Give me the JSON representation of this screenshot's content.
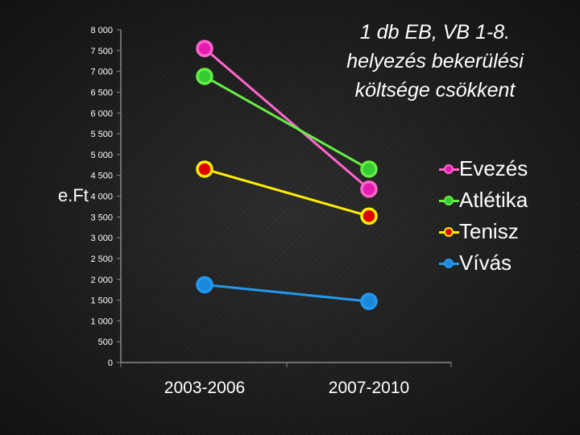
{
  "chart_data": {
    "type": "line",
    "title": "1 db EB, VB 1-8. helyezés bekerülési költsége csökkent",
    "title_lines": [
      "1 db EB, VB 1-8.",
      "helyezés bekerülési",
      "költsége csökkent"
    ],
    "ylabel": "e.Ft",
    "xlabel": "",
    "categories": [
      "2003-2006",
      "2007-2010"
    ],
    "ylim": [
      0,
      8000
    ],
    "yticks": [
      0,
      500,
      1000,
      1500,
      2000,
      2500,
      3000,
      3500,
      4000,
      4500,
      5000,
      5500,
      6000,
      6500,
      7000,
      7500,
      8000
    ],
    "ytick_labels": [
      "0",
      "500",
      "1 000",
      "1 500",
      "2 000",
      "2 500",
      "3 000",
      "3 500",
      "4 000",
      "4 500",
      "5 000",
      "5 500",
      "6 000",
      "6 500",
      "7 000",
      "7 500",
      "8 000"
    ],
    "legend_position": "right",
    "series": [
      {
        "name": "Evezés",
        "values": [
          7550,
          4170
        ],
        "color": "#ff66cc",
        "marker_color": "#e61bb0"
      },
      {
        "name": "Atlétika",
        "values": [
          6880,
          4650
        ],
        "color": "#66ee44",
        "marker_color": "#33cc33"
      },
      {
        "name": "Tenisz",
        "values": [
          4650,
          3520
        ],
        "color": "#ffee00",
        "marker_color": "#dd0000"
      },
      {
        "name": "Vívás",
        "values": [
          1870,
          1470
        ],
        "color": "#2299ee",
        "marker_color": "#1a88dd"
      }
    ]
  }
}
